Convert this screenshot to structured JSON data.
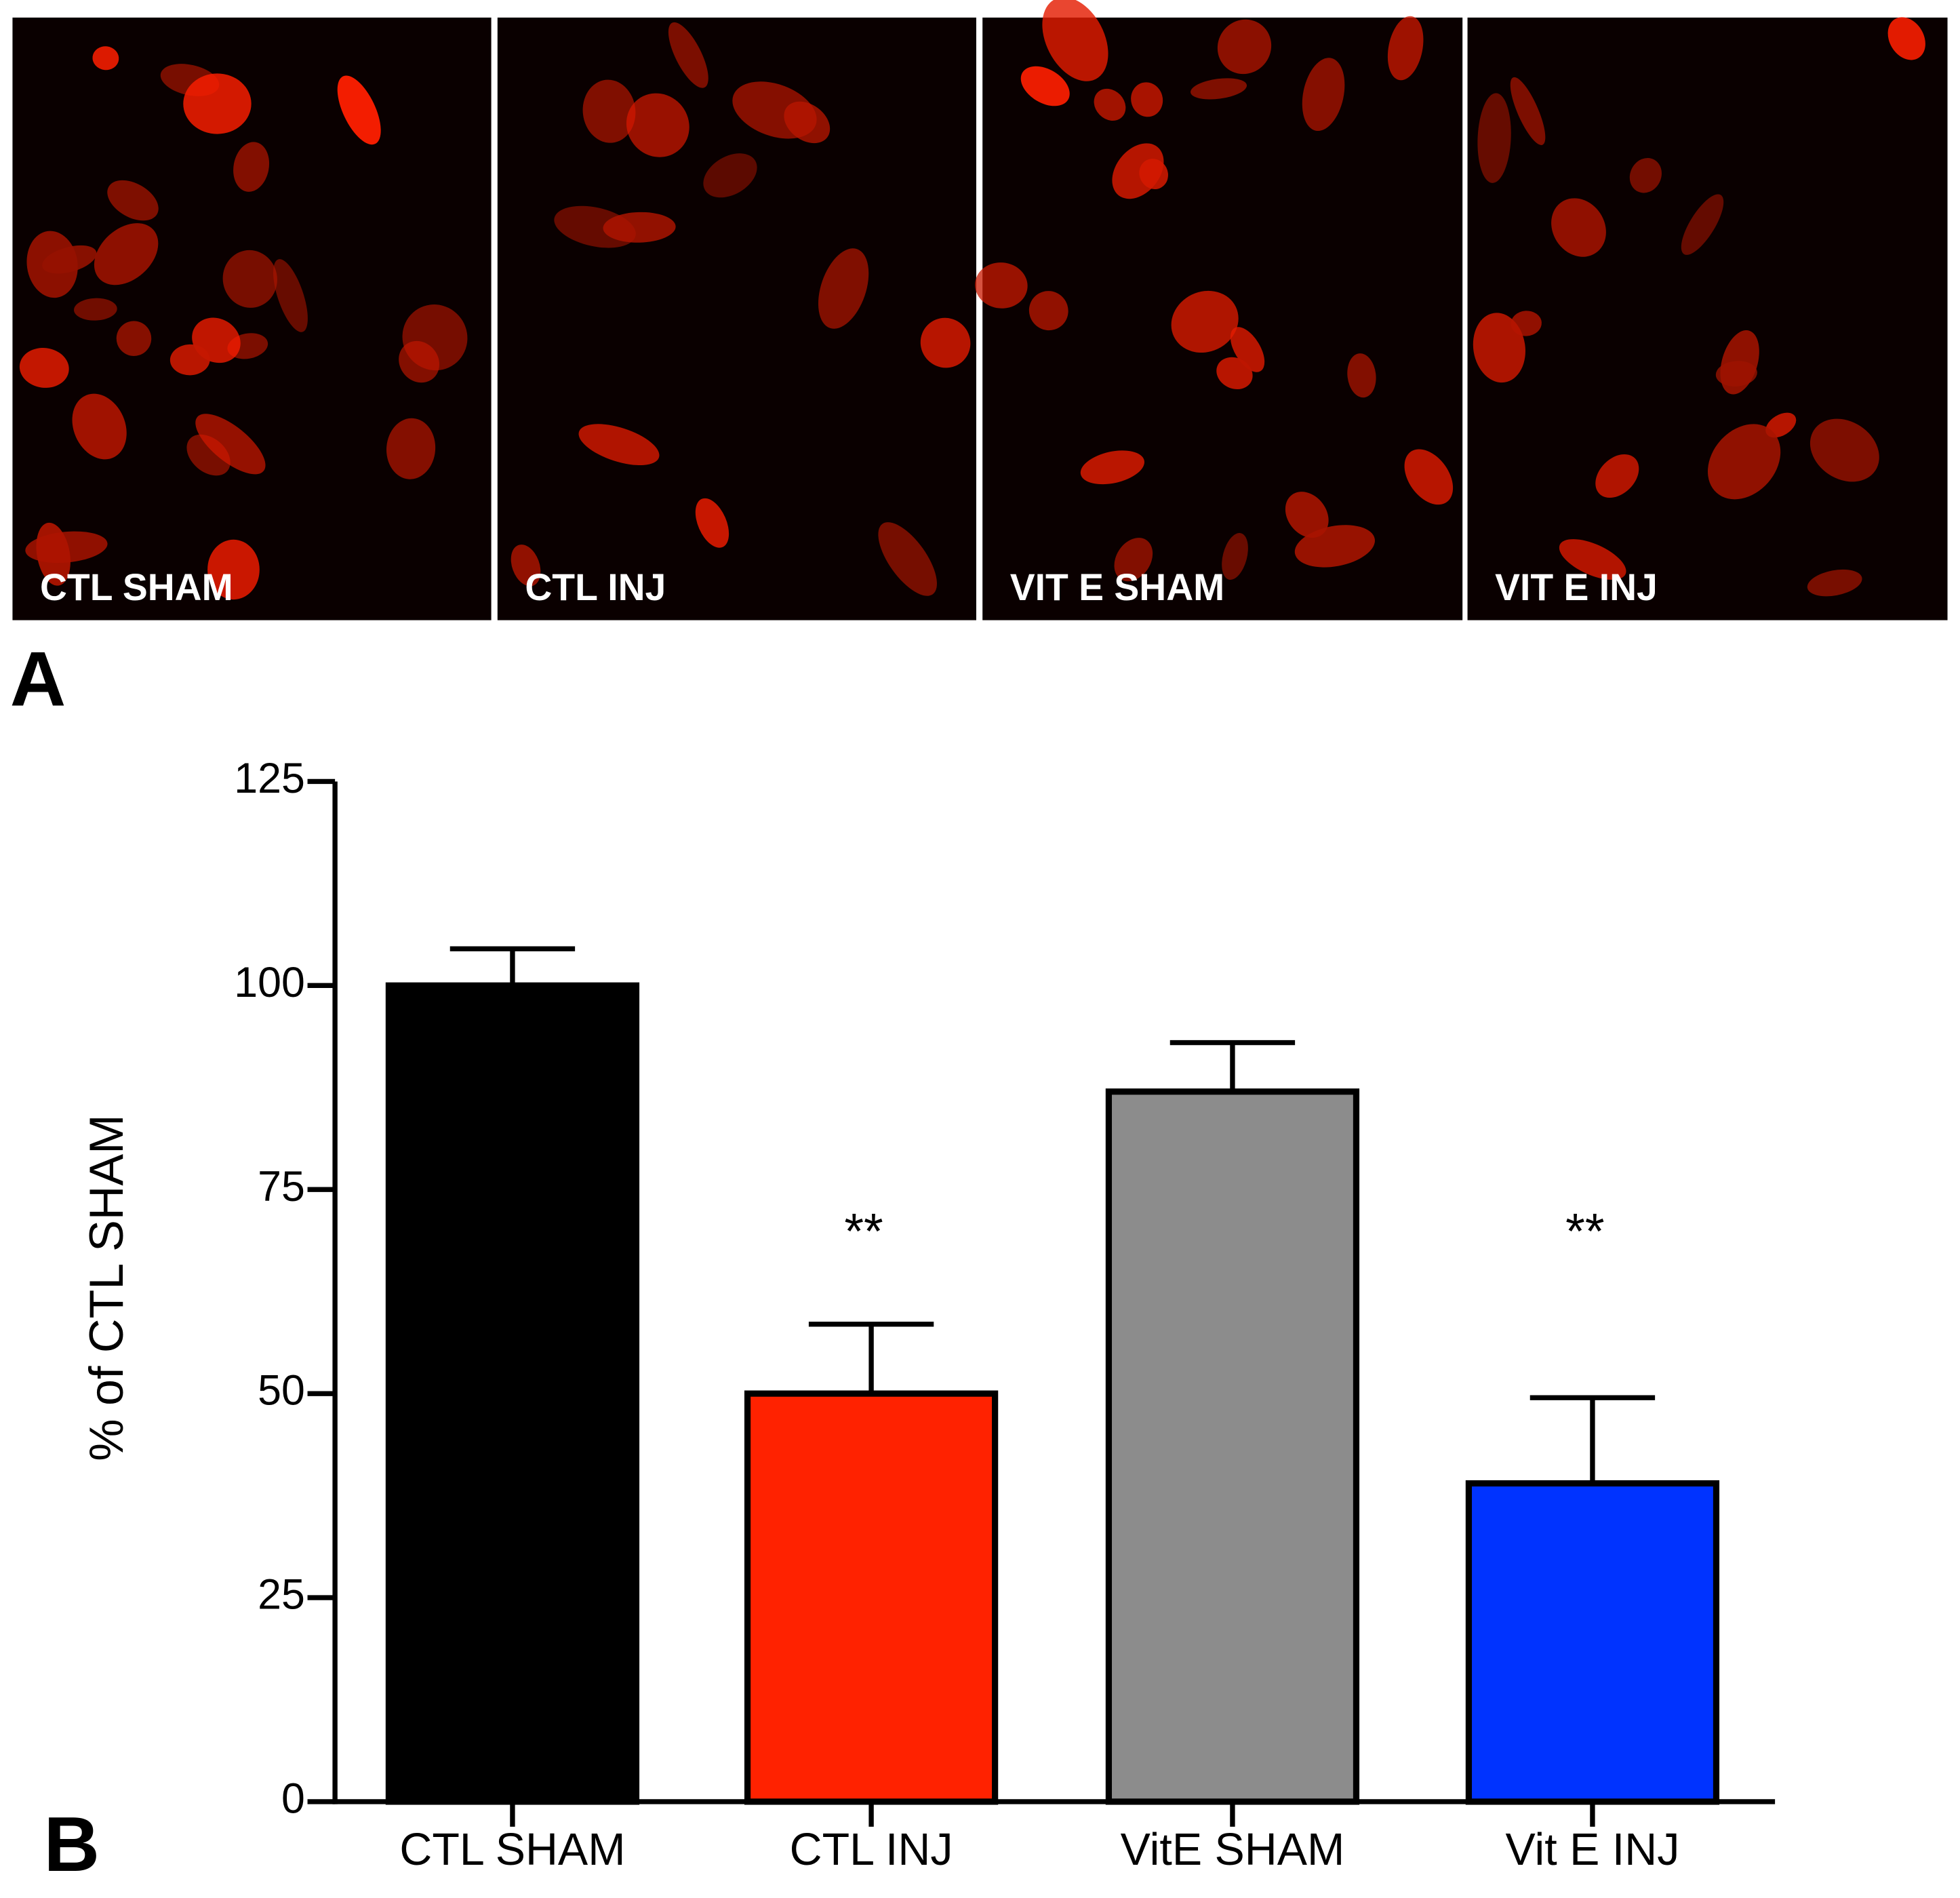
{
  "panel_labels": [
    "A",
    "B"
  ],
  "micrographs": [
    {
      "label": "CTL SHAM"
    },
    {
      "label": "CTL INJ"
    },
    {
      "label": "VIT E SHAM"
    },
    {
      "label": "VIT E INJ"
    }
  ],
  "chart_data": {
    "type": "bar",
    "categories": [
      "CTL SHAM",
      "CTL INJ",
      "VitE SHAM",
      "Vit E INJ"
    ],
    "values": [
      100,
      50,
      87,
      39
    ],
    "errors": [
      4.5,
      8.5,
      6,
      10.5
    ],
    "colors": [
      "#000000",
      "#ff2200",
      "#8c8c8c",
      "#0033ff"
    ],
    "significance": [
      null,
      "**",
      null,
      "**"
    ],
    "ylabel": "% of CTL SHAM",
    "ylim": [
      0,
      125
    ],
    "yticks": [
      0,
      25,
      50,
      75,
      100,
      125
    ],
    "grid": false
  }
}
